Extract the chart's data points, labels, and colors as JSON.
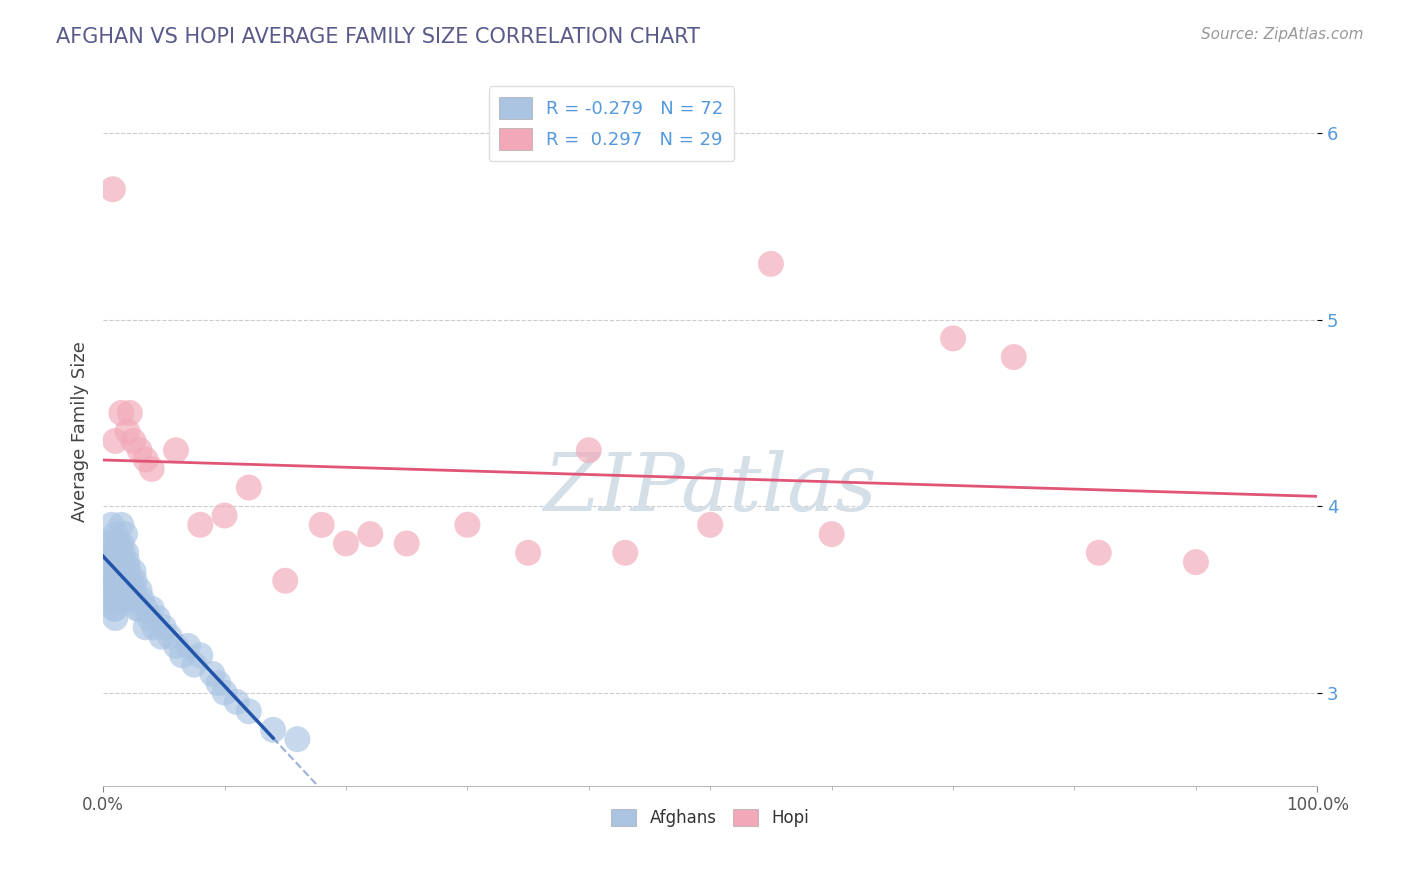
{
  "title": "AFGHAN VS HOPI AVERAGE FAMILY SIZE CORRELATION CHART",
  "source": "Source: ZipAtlas.com",
  "ylabel": "Average Family Size",
  "legend_label1": "Afghans",
  "legend_label2": "Hopi",
  "r_afghan": -0.279,
  "n_afghan": 72,
  "r_hopi": 0.297,
  "n_hopi": 29,
  "xlim": [
    0.0,
    1.0
  ],
  "ylim": [
    2.5,
    6.3
  ],
  "yticks": [
    3.0,
    4.0,
    5.0,
    6.0
  ],
  "afghan_color": "#aac4e2",
  "hopi_color": "#f2a8b8",
  "afghan_line_color": "#2255aa",
  "hopi_line_color": "#e05575",
  "watermark_color": "#d4dfe8",
  "background_color": "#ffffff",
  "title_color": "#5a5a8a",
  "tick_color": "#5599dd",
  "grid_color": "#cccccc",
  "afghan_x": [
    0.005,
    0.005,
    0.005,
    0.007,
    0.007,
    0.008,
    0.008,
    0.008,
    0.009,
    0.009,
    0.01,
    0.01,
    0.01,
    0.01,
    0.01,
    0.01,
    0.01,
    0.01,
    0.01,
    0.012,
    0.012,
    0.012,
    0.013,
    0.013,
    0.013,
    0.015,
    0.015,
    0.015,
    0.015,
    0.015,
    0.016,
    0.017,
    0.017,
    0.018,
    0.018,
    0.019,
    0.019,
    0.02,
    0.02,
    0.021,
    0.022,
    0.022,
    0.023,
    0.025,
    0.025,
    0.026,
    0.027,
    0.028,
    0.03,
    0.03,
    0.032,
    0.035,
    0.035,
    0.038,
    0.04,
    0.042,
    0.045,
    0.048,
    0.05,
    0.055,
    0.06,
    0.065,
    0.07,
    0.075,
    0.08,
    0.09,
    0.095,
    0.1,
    0.11,
    0.12,
    0.14,
    0.16
  ],
  "afghan_y": [
    3.8,
    3.7,
    3.55,
    3.65,
    3.9,
    3.75,
    3.6,
    3.5,
    3.8,
    3.45,
    3.85,
    3.75,
    3.7,
    3.65,
    3.6,
    3.55,
    3.5,
    3.45,
    3.4,
    3.75,
    3.7,
    3.6,
    3.8,
    3.65,
    3.55,
    3.9,
    3.8,
    3.7,
    3.6,
    3.5,
    3.75,
    3.7,
    3.6,
    3.85,
    3.65,
    3.75,
    3.6,
    3.7,
    3.55,
    3.65,
    3.6,
    3.5,
    3.55,
    3.65,
    3.55,
    3.6,
    3.5,
    3.45,
    3.55,
    3.45,
    3.5,
    3.45,
    3.35,
    3.4,
    3.45,
    3.35,
    3.4,
    3.3,
    3.35,
    3.3,
    3.25,
    3.2,
    3.25,
    3.15,
    3.2,
    3.1,
    3.05,
    3.0,
    2.95,
    2.9,
    2.8,
    2.75
  ],
  "hopi_x": [
    0.008,
    0.01,
    0.015,
    0.02,
    0.022,
    0.025,
    0.03,
    0.035,
    0.04,
    0.06,
    0.08,
    0.1,
    0.12,
    0.15,
    0.18,
    0.2,
    0.22,
    0.25,
    0.3,
    0.35,
    0.4,
    0.43,
    0.5,
    0.55,
    0.6,
    0.7,
    0.75,
    0.82,
    0.9
  ],
  "hopi_y": [
    5.7,
    4.35,
    4.5,
    4.4,
    4.5,
    4.35,
    4.3,
    4.25,
    4.2,
    4.3,
    3.9,
    3.95,
    4.1,
    3.6,
    3.9,
    3.8,
    3.85,
    3.8,
    3.9,
    3.75,
    4.3,
    3.75,
    3.9,
    5.3,
    3.85,
    4.9,
    4.8,
    3.75,
    3.7
  ]
}
